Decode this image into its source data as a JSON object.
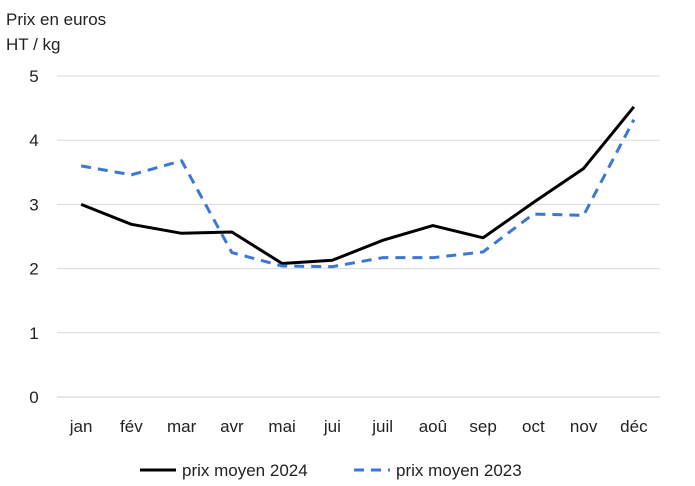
{
  "chart_data": {
    "type": "line",
    "title_lines": [
      "Prix en euros",
      "HT / kg"
    ],
    "xlabel": "",
    "ylabel": "Prix en euros HT / kg",
    "categories": [
      "jan",
      "fév",
      "mar",
      "avr",
      "mai",
      "jui",
      "juil",
      "aoû",
      "sep",
      "oct",
      "nov",
      "déc"
    ],
    "ylim": [
      0,
      5
    ],
    "yticks": [
      "0",
      "1",
      "2",
      "3",
      "4",
      "5"
    ],
    "grid": true,
    "legend_position": "bottom",
    "series": [
      {
        "name": "prix moyen 2024",
        "color": "#000000",
        "style": "solid",
        "values": [
          3.0,
          2.69,
          2.55,
          2.57,
          2.08,
          2.13,
          2.44,
          2.67,
          2.48,
          3.03,
          3.56,
          4.52
        ]
      },
      {
        "name": "prix moyen 2023",
        "color": "#3a78d4",
        "style": "dashed",
        "values": [
          3.6,
          3.46,
          3.68,
          2.25,
          2.04,
          2.03,
          2.17,
          2.17,
          2.26,
          2.85,
          2.83,
          4.32
        ]
      }
    ]
  }
}
